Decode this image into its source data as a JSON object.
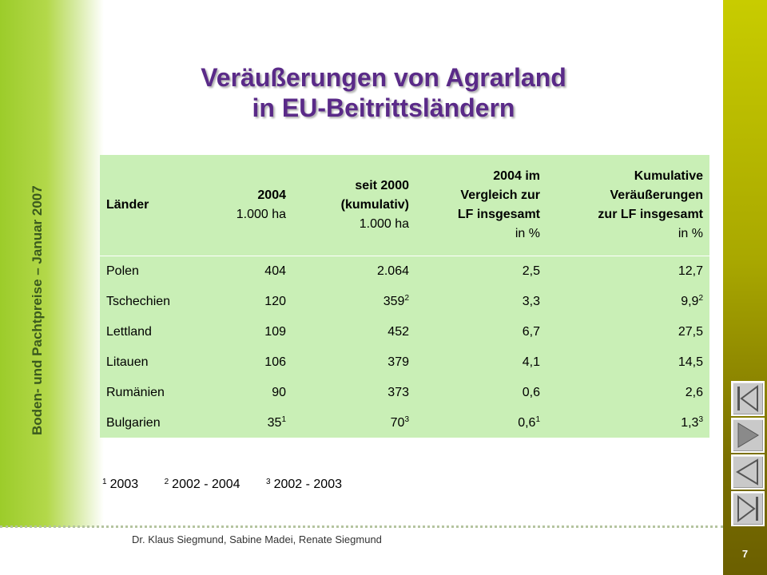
{
  "sidebar": {
    "vertical_text": "Boden- und Pachtpreise – Januar 2007"
  },
  "slide": {
    "title_line1": "Veräußerungen von Agrarland",
    "title_line2": "in EU-Beitrittsländern"
  },
  "table": {
    "headers": [
      {
        "label": "Länder",
        "unit": ""
      },
      {
        "label": "2004",
        "unit": "1.000 ha"
      },
      {
        "label_lines": [
          "seit 2000",
          "(kumulativ)"
        ],
        "unit": "1.000 ha"
      },
      {
        "label_lines": [
          "2004 im",
          "Vergleich zur",
          "LF insgesamt"
        ],
        "unit": "in %"
      },
      {
        "label_lines": [
          "Kumulative",
          "Veräußerungen",
          "zur LF insgesamt"
        ],
        "unit": "in %"
      }
    ],
    "rows": [
      {
        "country": "Polen",
        "v2004": "404",
        "v2004_sup": "",
        "cum": "2.064",
        "cum_sup": "",
        "pct2004": "2,5",
        "pct2004_sup": "",
        "pctcum": "12,7",
        "pctcum_sup": ""
      },
      {
        "country": "Tschechien",
        "v2004": "120",
        "v2004_sup": "",
        "cum": "359",
        "cum_sup": "2",
        "pct2004": "3,3",
        "pct2004_sup": "",
        "pctcum": "9,9",
        "pctcum_sup": "2"
      },
      {
        "country": "Lettland",
        "v2004": "109",
        "v2004_sup": "",
        "cum": "452",
        "cum_sup": "",
        "pct2004": "6,7",
        "pct2004_sup": "",
        "pctcum": "27,5",
        "pctcum_sup": ""
      },
      {
        "country": "Litauen",
        "v2004": "106",
        "v2004_sup": "",
        "cum": "379",
        "cum_sup": "",
        "pct2004": "4,1",
        "pct2004_sup": "",
        "pctcum": "14,5",
        "pctcum_sup": ""
      },
      {
        "country": "Rumänien",
        "v2004": "90",
        "v2004_sup": "",
        "cum": "373",
        "cum_sup": "",
        "pct2004": "0,6",
        "pct2004_sup": "",
        "pctcum": "2,6",
        "pctcum_sup": ""
      },
      {
        "country": "Bulgarien",
        "v2004": "35",
        "v2004_sup": "1",
        "cum": "70",
        "cum_sup": "3",
        "pct2004": "0,6",
        "pct2004_sup": "1",
        "pctcum": "1,3",
        "pctcum_sup": "3"
      }
    ]
  },
  "footnotes": [
    {
      "num": "1",
      "text": "2003"
    },
    {
      "num": "2",
      "text": "2002 - 2004"
    },
    {
      "num": "3",
      "text": "2002 - 2003"
    }
  ],
  "footer": {
    "authors": "Dr. Klaus Siegmund, Sabine Madei, Renate Siegmund",
    "page_number": "7"
  },
  "nav_buttons": [
    {
      "icon": "first-slide-icon"
    },
    {
      "icon": "next-slide-icon"
    },
    {
      "icon": "previous-slide-icon"
    },
    {
      "icon": "last-slide-icon"
    }
  ],
  "colors": {
    "title": "#5a2a88",
    "table_bg": "#c9efb6",
    "left_band": "#9ccc2a",
    "right_band": "#a9a800"
  }
}
